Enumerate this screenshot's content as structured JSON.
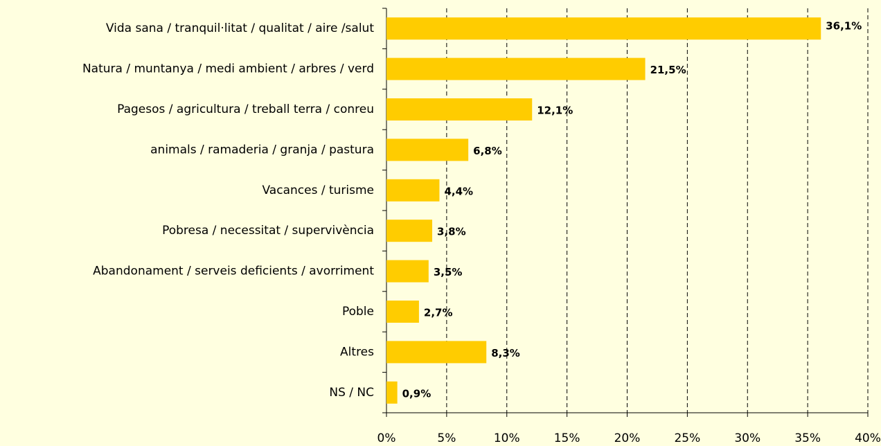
{
  "chart_data": {
    "type": "bar",
    "orientation": "horizontal",
    "categories": [
      "Vida sana / tranquil·litat / qualitat / aire /salut",
      "Natura / muntanya / medi ambient / arbres / verd",
      "Pagesos / agricultura / treball terra / conreu",
      "animals / ramaderia / granja / pastura",
      "Vacances / turisme",
      "Pobresa / necessitat / supervivència",
      "Abandonament / serveis deficients / avorriment",
      "Poble",
      "Altres",
      "NS / NC"
    ],
    "values": [
      36.1,
      21.5,
      12.1,
      6.8,
      4.4,
      3.8,
      3.5,
      2.7,
      8.3,
      0.9
    ],
    "value_labels": [
      "36,1%",
      "21,5%",
      "12,1%",
      "6,8%",
      "4,4%",
      "3,8%",
      "3,5%",
      "2,7%",
      "8,3%",
      "0,9%"
    ],
    "color": "#ffcc00",
    "xlim": [
      0,
      40
    ],
    "xticks": [
      {
        "value": 0,
        "label": "0%"
      },
      {
        "value": 5,
        "label": "5%"
      },
      {
        "value": 10,
        "label": "10%"
      },
      {
        "value": 15,
        "label": "15%"
      },
      {
        "value": 20,
        "label": "20%"
      },
      {
        "value": 25,
        "label": "25%"
      },
      {
        "value": 30,
        "label": "30%"
      },
      {
        "value": 35,
        "label": "35%"
      },
      {
        "value": 40,
        "label": "40%"
      }
    ],
    "grid": true
  }
}
